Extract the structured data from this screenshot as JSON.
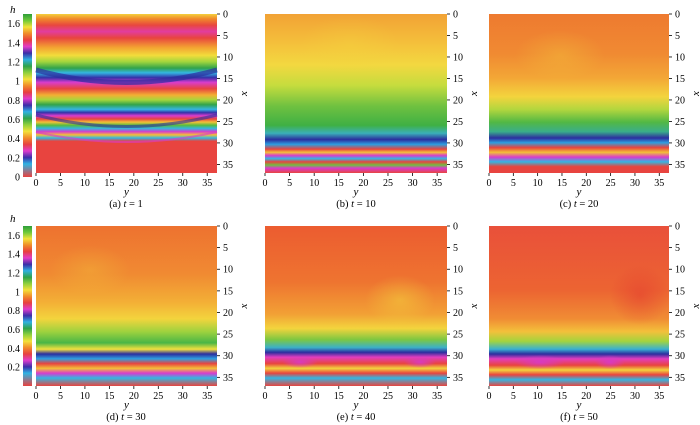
{
  "colorbar": {
    "label": "h",
    "ticks": [
      "1.6",
      "1.4",
      "1.2",
      "1",
      "0.8",
      "0.6",
      "0.4",
      "0.2",
      "0"
    ],
    "ticks_bottom": [
      "1.6",
      "1.4",
      "1.2",
      "1",
      "0.8",
      "0.6",
      "0.4",
      "0.2"
    ]
  },
  "axes": {
    "x_label": "x",
    "y_label": "y",
    "x_ticks": [
      "0",
      "5",
      "10",
      "15",
      "20",
      "25",
      "30",
      "35"
    ],
    "y_ticks": [
      "0",
      "5",
      "10",
      "15",
      "20",
      "25",
      "30",
      "35"
    ]
  },
  "panels": [
    {
      "id": "a",
      "caption_prefix": "(a) ",
      "caption_var": "t",
      "caption_suffix": " = 1"
    },
    {
      "id": "b",
      "caption_prefix": "(b) ",
      "caption_var": "t",
      "caption_suffix": " = 10"
    },
    {
      "id": "c",
      "caption_prefix": "(c) ",
      "caption_var": "t",
      "caption_suffix": " = 20"
    },
    {
      "id": "d",
      "caption_prefix": "(d) ",
      "caption_var": "t",
      "caption_suffix": " = 30"
    },
    {
      "id": "e",
      "caption_prefix": "(e) ",
      "caption_var": "t",
      "caption_suffix": " = 40"
    },
    {
      "id": "f",
      "caption_prefix": "(f) ",
      "caption_var": "t",
      "caption_suffix": " = 50"
    }
  ],
  "chart_data": {
    "type": "heatmap",
    "x_range": [
      0,
      37
    ],
    "y_range": [
      0,
      37
    ],
    "color_range": [
      0,
      1.7
    ],
    "x_axis_position": "right",
    "y_axis_position": "bottom",
    "colorbar_position": "left",
    "panel_times": [
      1,
      10,
      20,
      30,
      40,
      50
    ]
  }
}
